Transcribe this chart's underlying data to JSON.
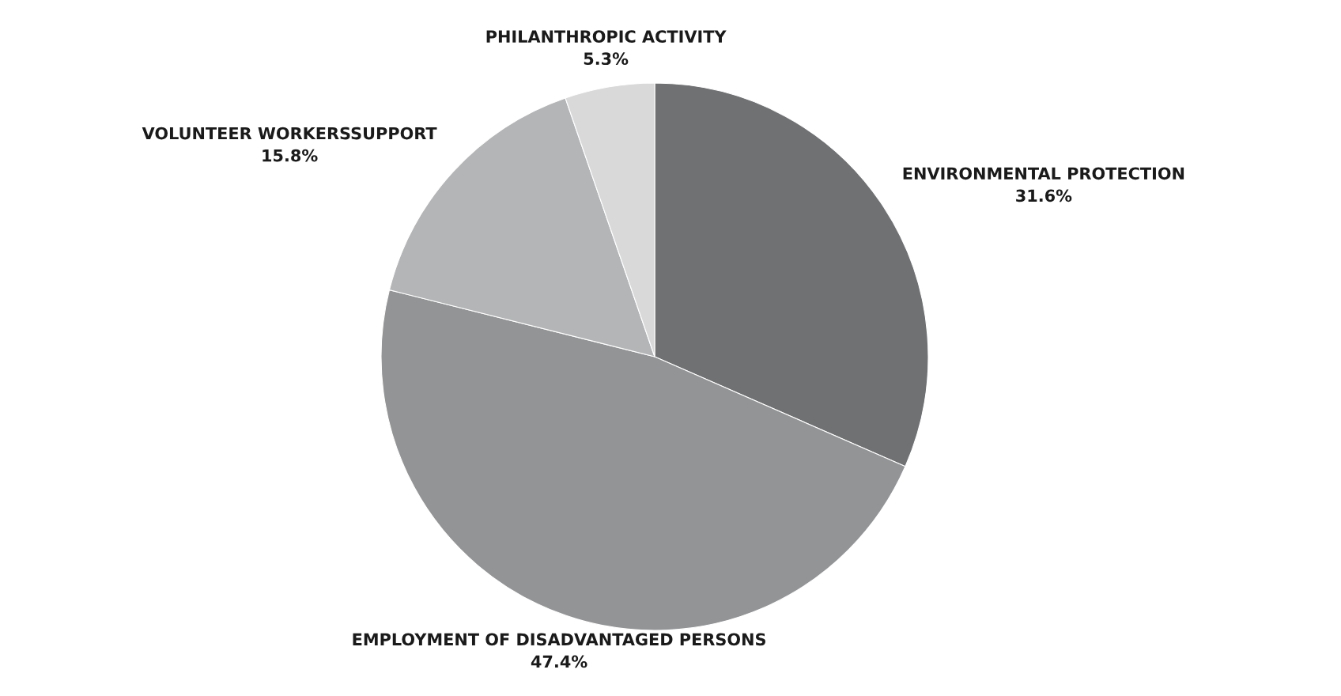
{
  "chart_data": {
    "type": "pie",
    "categories": [
      "ENVIRONMENTAL PROTECTION",
      "EMPLOYMENT OF DISADVANTAGED PERSONS",
      "VOLUNTEER WORKERSSUPPORT",
      "PHILANTHROPIC ACTIVITY"
    ],
    "values": [
      31.6,
      47.4,
      15.8,
      5.3
    ],
    "value_labels": [
      "31.6%",
      "47.4%",
      "15.8%",
      "5.3%"
    ],
    "colors": [
      "#707173",
      "#939496",
      "#b4b5b7",
      "#d9d9d9"
    ]
  }
}
